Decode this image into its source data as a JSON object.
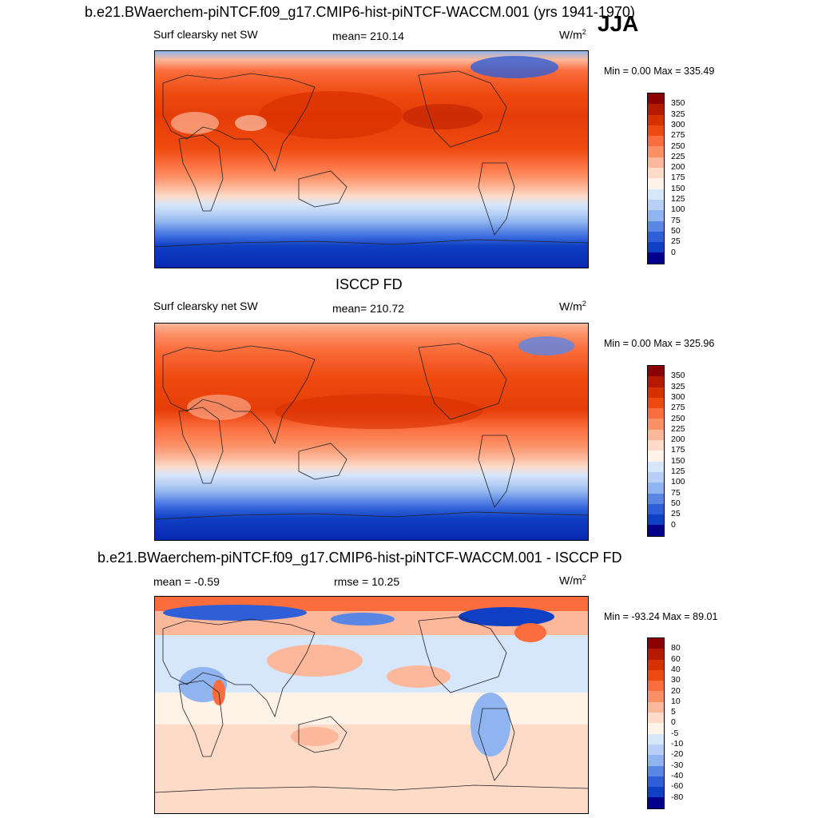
{
  "header": {
    "title": "b.e21.BWaerchem-piNTCF.f09_g17.CMIP6-hist-piNTCF-WACCM.001 (yrs 1941-1970)",
    "season": "JJA"
  },
  "panels": [
    {
      "id": "model",
      "subtitle": "",
      "variable": "Surf clearsky net SW",
      "stat": "mean= 210.14",
      "units": "W/m",
      "units_sup": "2",
      "minmax": "Min =   0.00 Max = 335.49",
      "colorbar": {
        "labels": [
          "350",
          "325",
          "300",
          "275",
          "250",
          "225",
          "200",
          "175",
          "150",
          "125",
          "100",
          "75",
          "50",
          "25",
          "0"
        ],
        "colors": [
          "#8b0000",
          "#b51900",
          "#d83100",
          "#ee4a10",
          "#fb6d3d",
          "#fc9065",
          "#fdb79a",
          "#fddbc8",
          "#fff2e6",
          "#d6e6fb",
          "#b8d0f5",
          "#8fb4ef",
          "#5a86e6",
          "#2e5fd8",
          "#0f3fc4",
          "#00008c"
        ]
      }
    },
    {
      "id": "obs",
      "subtitle": "ISCCP FD",
      "variable": "Surf clearsky net SW",
      "stat": "mean= 210.72",
      "units": "W/m",
      "units_sup": "2",
      "minmax": "Min =   0.00 Max = 325.96",
      "colorbar": {
        "labels": [
          "350",
          "325",
          "300",
          "275",
          "250",
          "225",
          "200",
          "175",
          "150",
          "125",
          "100",
          "75",
          "50",
          "25",
          "0"
        ],
        "colors": [
          "#8b0000",
          "#b51900",
          "#d83100",
          "#ee4a10",
          "#fb6d3d",
          "#fc9065",
          "#fdb79a",
          "#fddbc8",
          "#fff2e6",
          "#d6e6fb",
          "#b8d0f5",
          "#8fb4ef",
          "#5a86e6",
          "#2e5fd8",
          "#0f3fc4",
          "#00008c"
        ]
      }
    },
    {
      "id": "diff",
      "subtitle": "b.e21.BWaerchem-piNTCF.f09_g17.CMIP6-hist-piNTCF-WACCM.001 - ISCCP FD",
      "stat_left": "mean =  -0.59",
      "stat": "rmse =  10.25",
      "units": "W/m",
      "units_sup": "2",
      "minmax": "Min = -93.24 Max =  89.01",
      "colorbar": {
        "labels": [
          "80",
          "60",
          "40",
          "30",
          "20",
          "10",
          "5",
          "0",
          "-5",
          "-10",
          "-20",
          "-30",
          "-40",
          "-60",
          "-80"
        ],
        "colors": [
          "#8b0000",
          "#b51900",
          "#d83100",
          "#ee4a10",
          "#fb6d3d",
          "#fc9065",
          "#fdb79a",
          "#fddbc8",
          "#fff2e6",
          "#d6e6fb",
          "#b8d0f5",
          "#8fb4ef",
          "#5a86e6",
          "#2e5fd8",
          "#0f3fc4",
          "#00008c"
        ]
      }
    }
  ]
}
